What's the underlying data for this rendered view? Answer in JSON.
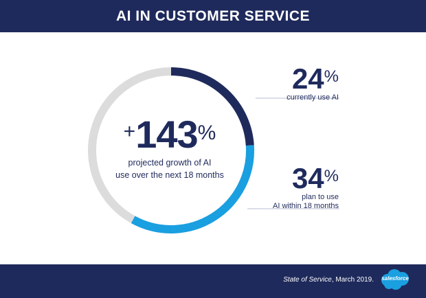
{
  "header": {
    "title": "AI IN CUSTOMER SERVICE"
  },
  "center": {
    "prefix": "+",
    "value": "143",
    "unit": "%",
    "line1": "projected growth of AI",
    "line2": "use over the next 18 months"
  },
  "stats": [
    {
      "value": "24",
      "unit": "%",
      "label_lines": [
        "currently use AI"
      ]
    },
    {
      "value": "34",
      "unit": "%",
      "label_lines": [
        "plan to use",
        "AI within 18 months"
      ]
    }
  ],
  "footer": {
    "source_italic": "State of Service",
    "source_rest": ", March 2019.",
    "logo_text": "salesforce"
  },
  "chart_data": {
    "type": "pie",
    "variant": "donut",
    "segments": [
      {
        "label": "currently use AI",
        "value": 24,
        "color": "#1f2a5c"
      },
      {
        "label": "plan to use AI within 18 months",
        "value": 34,
        "color": "#1a9fe0"
      },
      {
        "label": "",
        "value": 42,
        "color": "#dcdcdc"
      }
    ]
  }
}
